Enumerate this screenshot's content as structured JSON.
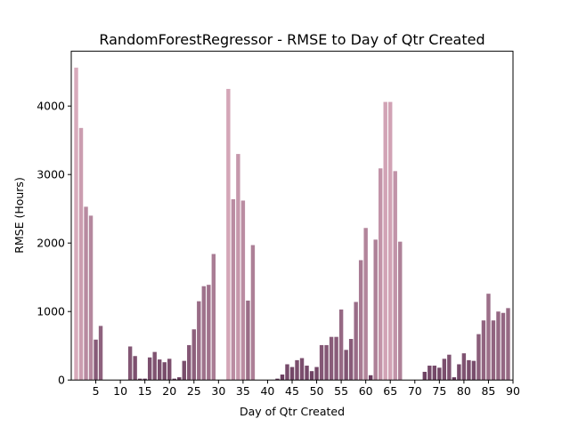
{
  "chart_data": {
    "type": "bar",
    "title": "RandomForestRegressor - RMSE to Day of Qtr Created",
    "xlabel": "Day of Qtr Created",
    "ylabel": "RMSE (Hours)",
    "xlim": [
      0,
      90
    ],
    "ylim": [
      0,
      4800
    ],
    "xticks": [
      5,
      10,
      15,
      20,
      25,
      30,
      35,
      40,
      45,
      50,
      55,
      60,
      65,
      70,
      75,
      80,
      85,
      90
    ],
    "yticks": [
      0,
      1000,
      2000,
      3000,
      4000
    ],
    "grid": false,
    "color_low": "#5a2e52",
    "color_high": "#d8aabb",
    "x": [
      1,
      2,
      3,
      4,
      5,
      6,
      7,
      8,
      9,
      10,
      11,
      12,
      13,
      14,
      15,
      16,
      17,
      18,
      19,
      20,
      21,
      22,
      23,
      24,
      25,
      26,
      27,
      28,
      29,
      30,
      31,
      32,
      33,
      34,
      35,
      36,
      37,
      38,
      39,
      40,
      41,
      42,
      43,
      44,
      45,
      46,
      47,
      48,
      49,
      50,
      51,
      52,
      53,
      54,
      55,
      56,
      57,
      58,
      59,
      60,
      61,
      62,
      63,
      64,
      65,
      66,
      67,
      68,
      69,
      70,
      71,
      72,
      73,
      74,
      75,
      76,
      77,
      78,
      79,
      80,
      81,
      82,
      83,
      84,
      85,
      86,
      87,
      88,
      89
    ],
    "values": [
      4560,
      3680,
      2530,
      2400,
      590,
      790,
      0,
      0,
      0,
      0,
      0,
      490,
      350,
      20,
      20,
      330,
      410,
      300,
      260,
      310,
      20,
      40,
      280,
      510,
      740,
      1150,
      1370,
      1390,
      1840,
      0,
      0,
      4250,
      2640,
      3300,
      2620,
      1160,
      1970,
      0,
      0,
      0,
      0,
      20,
      80,
      230,
      190,
      290,
      320,
      210,
      130,
      190,
      510,
      510,
      630,
      630,
      1030,
      440,
      600,
      1140,
      1750,
      2220,
      70,
      2050,
      3090,
      4060,
      4060,
      3050,
      2020,
      0,
      0,
      0,
      0,
      120,
      210,
      210,
      180,
      310,
      370,
      40,
      230,
      390,
      290,
      280,
      670,
      870,
      1260,
      870,
      1000,
      980,
      1050
    ]
  }
}
